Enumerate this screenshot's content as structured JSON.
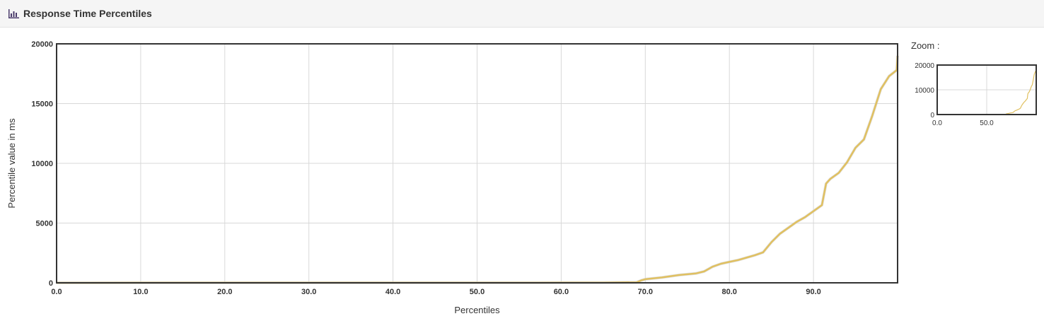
{
  "header": {
    "title": "Response Time Percentiles",
    "icon": "bar-chart-icon"
  },
  "zoom": {
    "label": "Zoom :",
    "y_ticks": [
      "0",
      "10000",
      "20000"
    ],
    "x_ticks": [
      "0.0",
      "50.0"
    ]
  },
  "colors": {
    "series": "#e0c060",
    "axis_box": "#333333",
    "grid": "#d8d8d8"
  },
  "chart_data": {
    "type": "line",
    "xlabel": "Percentiles",
    "ylabel": "Percentile value in ms",
    "xlim": [
      0,
      100
    ],
    "ylim": [
      0,
      20000
    ],
    "x_ticks": [
      "0.0",
      "10.0",
      "20.0",
      "30.0",
      "40.0",
      "50.0",
      "60.0",
      "70.0",
      "80.0",
      "90.0"
    ],
    "y_ticks": [
      "0",
      "5000",
      "10000",
      "15000",
      "20000"
    ],
    "grid": true,
    "series": [
      {
        "values": [
          [
            0,
            0
          ],
          [
            10,
            5
          ],
          [
            20,
            5
          ],
          [
            30,
            5
          ],
          [
            40,
            5
          ],
          [
            50,
            5
          ],
          [
            60,
            10
          ],
          [
            65,
            20
          ],
          [
            69,
            50
          ],
          [
            69.5,
            200
          ],
          [
            70,
            300
          ],
          [
            72,
            450
          ],
          [
            74,
            650
          ],
          [
            76,
            780
          ],
          [
            77,
            950
          ],
          [
            78,
            1350
          ],
          [
            79,
            1600
          ],
          [
            80,
            1750
          ],
          [
            81,
            1900
          ],
          [
            82,
            2100
          ],
          [
            83,
            2300
          ],
          [
            84,
            2550
          ],
          [
            85,
            3400
          ],
          [
            86,
            4100
          ],
          [
            87,
            4600
          ],
          [
            88,
            5100
          ],
          [
            89,
            5500
          ],
          [
            90,
            6000
          ],
          [
            91,
            6500
          ],
          [
            91.5,
            8300
          ],
          [
            92,
            8700
          ],
          [
            93,
            9200
          ],
          [
            94,
            10100
          ],
          [
            95,
            11300
          ],
          [
            96,
            12000
          ],
          [
            97,
            14000
          ],
          [
            98,
            16200
          ],
          [
            99,
            17300
          ],
          [
            99.9,
            17800
          ],
          [
            100,
            19000
          ]
        ]
      }
    ]
  }
}
